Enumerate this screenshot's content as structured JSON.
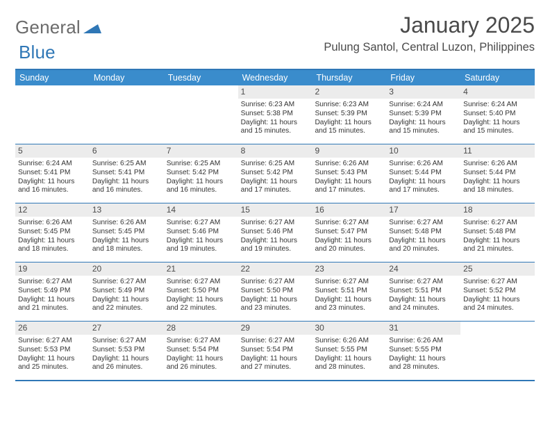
{
  "logo": {
    "general": "General",
    "blue": "Blue",
    "triangle_color": "#2f77b6",
    "general_color": "#6b6b6b"
  },
  "header": {
    "month_title": "January 2025",
    "location": "Pulung Santol, Central Luzon, Philippines"
  },
  "colors": {
    "header_bg": "#3a8ccc",
    "border": "#2f77b6",
    "daynum_bg": "#ececec",
    "text": "#333333"
  },
  "day_names": [
    "Sunday",
    "Monday",
    "Tuesday",
    "Wednesday",
    "Thursday",
    "Friday",
    "Saturday"
  ],
  "weeks": [
    [
      null,
      null,
      null,
      {
        "n": "1",
        "sr": "Sunrise: 6:23 AM",
        "ss": "Sunset: 5:38 PM",
        "d1": "Daylight: 11 hours",
        "d2": "and 15 minutes."
      },
      {
        "n": "2",
        "sr": "Sunrise: 6:23 AM",
        "ss": "Sunset: 5:39 PM",
        "d1": "Daylight: 11 hours",
        "d2": "and 15 minutes."
      },
      {
        "n": "3",
        "sr": "Sunrise: 6:24 AM",
        "ss": "Sunset: 5:39 PM",
        "d1": "Daylight: 11 hours",
        "d2": "and 15 minutes."
      },
      {
        "n": "4",
        "sr": "Sunrise: 6:24 AM",
        "ss": "Sunset: 5:40 PM",
        "d1": "Daylight: 11 hours",
        "d2": "and 15 minutes."
      }
    ],
    [
      {
        "n": "5",
        "sr": "Sunrise: 6:24 AM",
        "ss": "Sunset: 5:41 PM",
        "d1": "Daylight: 11 hours",
        "d2": "and 16 minutes."
      },
      {
        "n": "6",
        "sr": "Sunrise: 6:25 AM",
        "ss": "Sunset: 5:41 PM",
        "d1": "Daylight: 11 hours",
        "d2": "and 16 minutes."
      },
      {
        "n": "7",
        "sr": "Sunrise: 6:25 AM",
        "ss": "Sunset: 5:42 PM",
        "d1": "Daylight: 11 hours",
        "d2": "and 16 minutes."
      },
      {
        "n": "8",
        "sr": "Sunrise: 6:25 AM",
        "ss": "Sunset: 5:42 PM",
        "d1": "Daylight: 11 hours",
        "d2": "and 17 minutes."
      },
      {
        "n": "9",
        "sr": "Sunrise: 6:26 AM",
        "ss": "Sunset: 5:43 PM",
        "d1": "Daylight: 11 hours",
        "d2": "and 17 minutes."
      },
      {
        "n": "10",
        "sr": "Sunrise: 6:26 AM",
        "ss": "Sunset: 5:44 PM",
        "d1": "Daylight: 11 hours",
        "d2": "and 17 minutes."
      },
      {
        "n": "11",
        "sr": "Sunrise: 6:26 AM",
        "ss": "Sunset: 5:44 PM",
        "d1": "Daylight: 11 hours",
        "d2": "and 18 minutes."
      }
    ],
    [
      {
        "n": "12",
        "sr": "Sunrise: 6:26 AM",
        "ss": "Sunset: 5:45 PM",
        "d1": "Daylight: 11 hours",
        "d2": "and 18 minutes."
      },
      {
        "n": "13",
        "sr": "Sunrise: 6:26 AM",
        "ss": "Sunset: 5:45 PM",
        "d1": "Daylight: 11 hours",
        "d2": "and 18 minutes."
      },
      {
        "n": "14",
        "sr": "Sunrise: 6:27 AM",
        "ss": "Sunset: 5:46 PM",
        "d1": "Daylight: 11 hours",
        "d2": "and 19 minutes."
      },
      {
        "n": "15",
        "sr": "Sunrise: 6:27 AM",
        "ss": "Sunset: 5:46 PM",
        "d1": "Daylight: 11 hours",
        "d2": "and 19 minutes."
      },
      {
        "n": "16",
        "sr": "Sunrise: 6:27 AM",
        "ss": "Sunset: 5:47 PM",
        "d1": "Daylight: 11 hours",
        "d2": "and 20 minutes."
      },
      {
        "n": "17",
        "sr": "Sunrise: 6:27 AM",
        "ss": "Sunset: 5:48 PM",
        "d1": "Daylight: 11 hours",
        "d2": "and 20 minutes."
      },
      {
        "n": "18",
        "sr": "Sunrise: 6:27 AM",
        "ss": "Sunset: 5:48 PM",
        "d1": "Daylight: 11 hours",
        "d2": "and 21 minutes."
      }
    ],
    [
      {
        "n": "19",
        "sr": "Sunrise: 6:27 AM",
        "ss": "Sunset: 5:49 PM",
        "d1": "Daylight: 11 hours",
        "d2": "and 21 minutes."
      },
      {
        "n": "20",
        "sr": "Sunrise: 6:27 AM",
        "ss": "Sunset: 5:49 PM",
        "d1": "Daylight: 11 hours",
        "d2": "and 22 minutes."
      },
      {
        "n": "21",
        "sr": "Sunrise: 6:27 AM",
        "ss": "Sunset: 5:50 PM",
        "d1": "Daylight: 11 hours",
        "d2": "and 22 minutes."
      },
      {
        "n": "22",
        "sr": "Sunrise: 6:27 AM",
        "ss": "Sunset: 5:50 PM",
        "d1": "Daylight: 11 hours",
        "d2": "and 23 minutes."
      },
      {
        "n": "23",
        "sr": "Sunrise: 6:27 AM",
        "ss": "Sunset: 5:51 PM",
        "d1": "Daylight: 11 hours",
        "d2": "and 23 minutes."
      },
      {
        "n": "24",
        "sr": "Sunrise: 6:27 AM",
        "ss": "Sunset: 5:51 PM",
        "d1": "Daylight: 11 hours",
        "d2": "and 24 minutes."
      },
      {
        "n": "25",
        "sr": "Sunrise: 6:27 AM",
        "ss": "Sunset: 5:52 PM",
        "d1": "Daylight: 11 hours",
        "d2": "and 24 minutes."
      }
    ],
    [
      {
        "n": "26",
        "sr": "Sunrise: 6:27 AM",
        "ss": "Sunset: 5:53 PM",
        "d1": "Daylight: 11 hours",
        "d2": "and 25 minutes."
      },
      {
        "n": "27",
        "sr": "Sunrise: 6:27 AM",
        "ss": "Sunset: 5:53 PM",
        "d1": "Daylight: 11 hours",
        "d2": "and 26 minutes."
      },
      {
        "n": "28",
        "sr": "Sunrise: 6:27 AM",
        "ss": "Sunset: 5:54 PM",
        "d1": "Daylight: 11 hours",
        "d2": "and 26 minutes."
      },
      {
        "n": "29",
        "sr": "Sunrise: 6:27 AM",
        "ss": "Sunset: 5:54 PM",
        "d1": "Daylight: 11 hours",
        "d2": "and 27 minutes."
      },
      {
        "n": "30",
        "sr": "Sunrise: 6:26 AM",
        "ss": "Sunset: 5:55 PM",
        "d1": "Daylight: 11 hours",
        "d2": "and 28 minutes."
      },
      {
        "n": "31",
        "sr": "Sunrise: 6:26 AM",
        "ss": "Sunset: 5:55 PM",
        "d1": "Daylight: 11 hours",
        "d2": "and 28 minutes."
      },
      null
    ]
  ]
}
